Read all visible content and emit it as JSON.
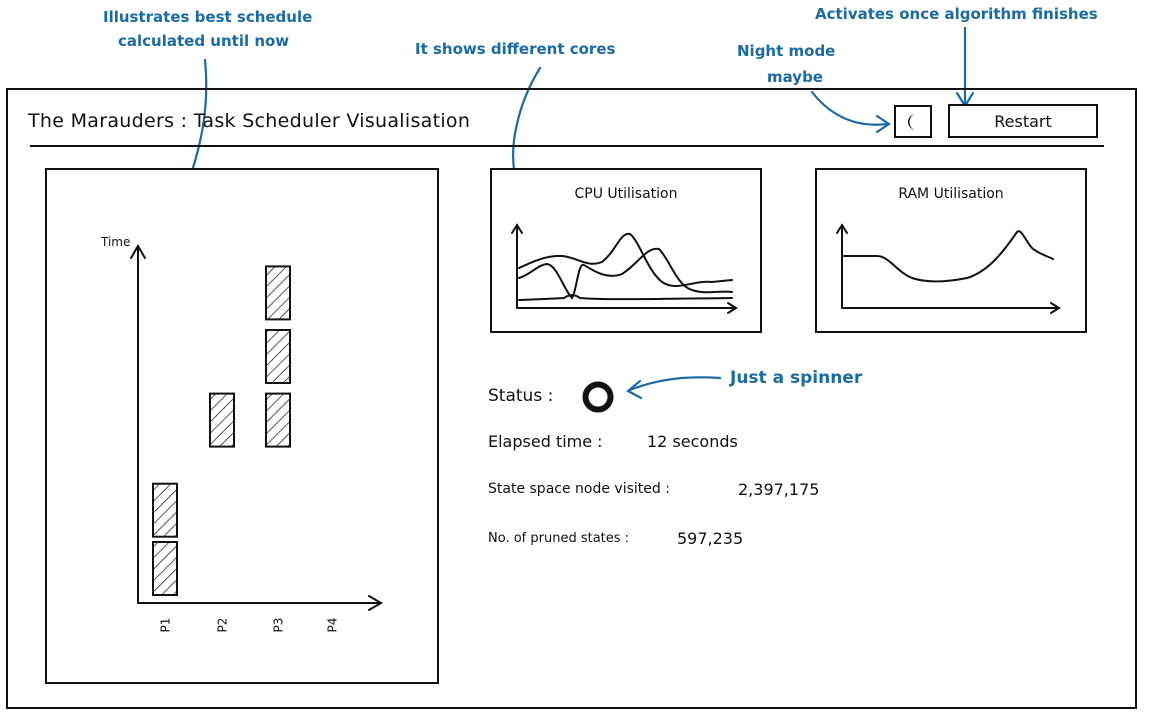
{
  "annotations": {
    "schedule_note_line1": "Illustrates best schedule",
    "schedule_note_line2": "calculated until now",
    "cores_note": "It shows different cores",
    "night_note_line1": "Night mode",
    "night_note_line2": "maybe",
    "restart_note": "Activates once algorithm finishes",
    "spinner_note": "Just a spinner"
  },
  "header": {
    "title": "The Marauders : Task Scheduler Visualisation",
    "restart_label": "Restart"
  },
  "icons": {
    "night_mode": "moon-icon",
    "status": "spinner-icon"
  },
  "schedule": {
    "y_label": "Time",
    "processors": [
      "P1",
      "P2",
      "P3",
      "P4"
    ],
    "tasks": [
      {
        "processor": "P1",
        "start": 0,
        "end": 1
      },
      {
        "processor": "P1",
        "start": 1.1,
        "end": 2.1
      },
      {
        "processor": "P2",
        "start": 2.8,
        "end": 3.8
      },
      {
        "processor": "P3",
        "start": 2.8,
        "end": 3.8
      },
      {
        "processor": "P3",
        "start": 4,
        "end": 5
      },
      {
        "processor": "P3",
        "start": 5.2,
        "end": 6.2
      }
    ]
  },
  "cpu": {
    "title": "CPU Utilisation"
  },
  "ram": {
    "title": "RAM Utilisation"
  },
  "status": {
    "label": "Status :",
    "elapsed_label": "Elapsed time :",
    "elapsed_value": "12 seconds",
    "nodes_label": "State space node visited :",
    "nodes_value": "2,397,175",
    "pruned_label": "No. of pruned states :",
    "pruned_value": "597,235"
  }
}
